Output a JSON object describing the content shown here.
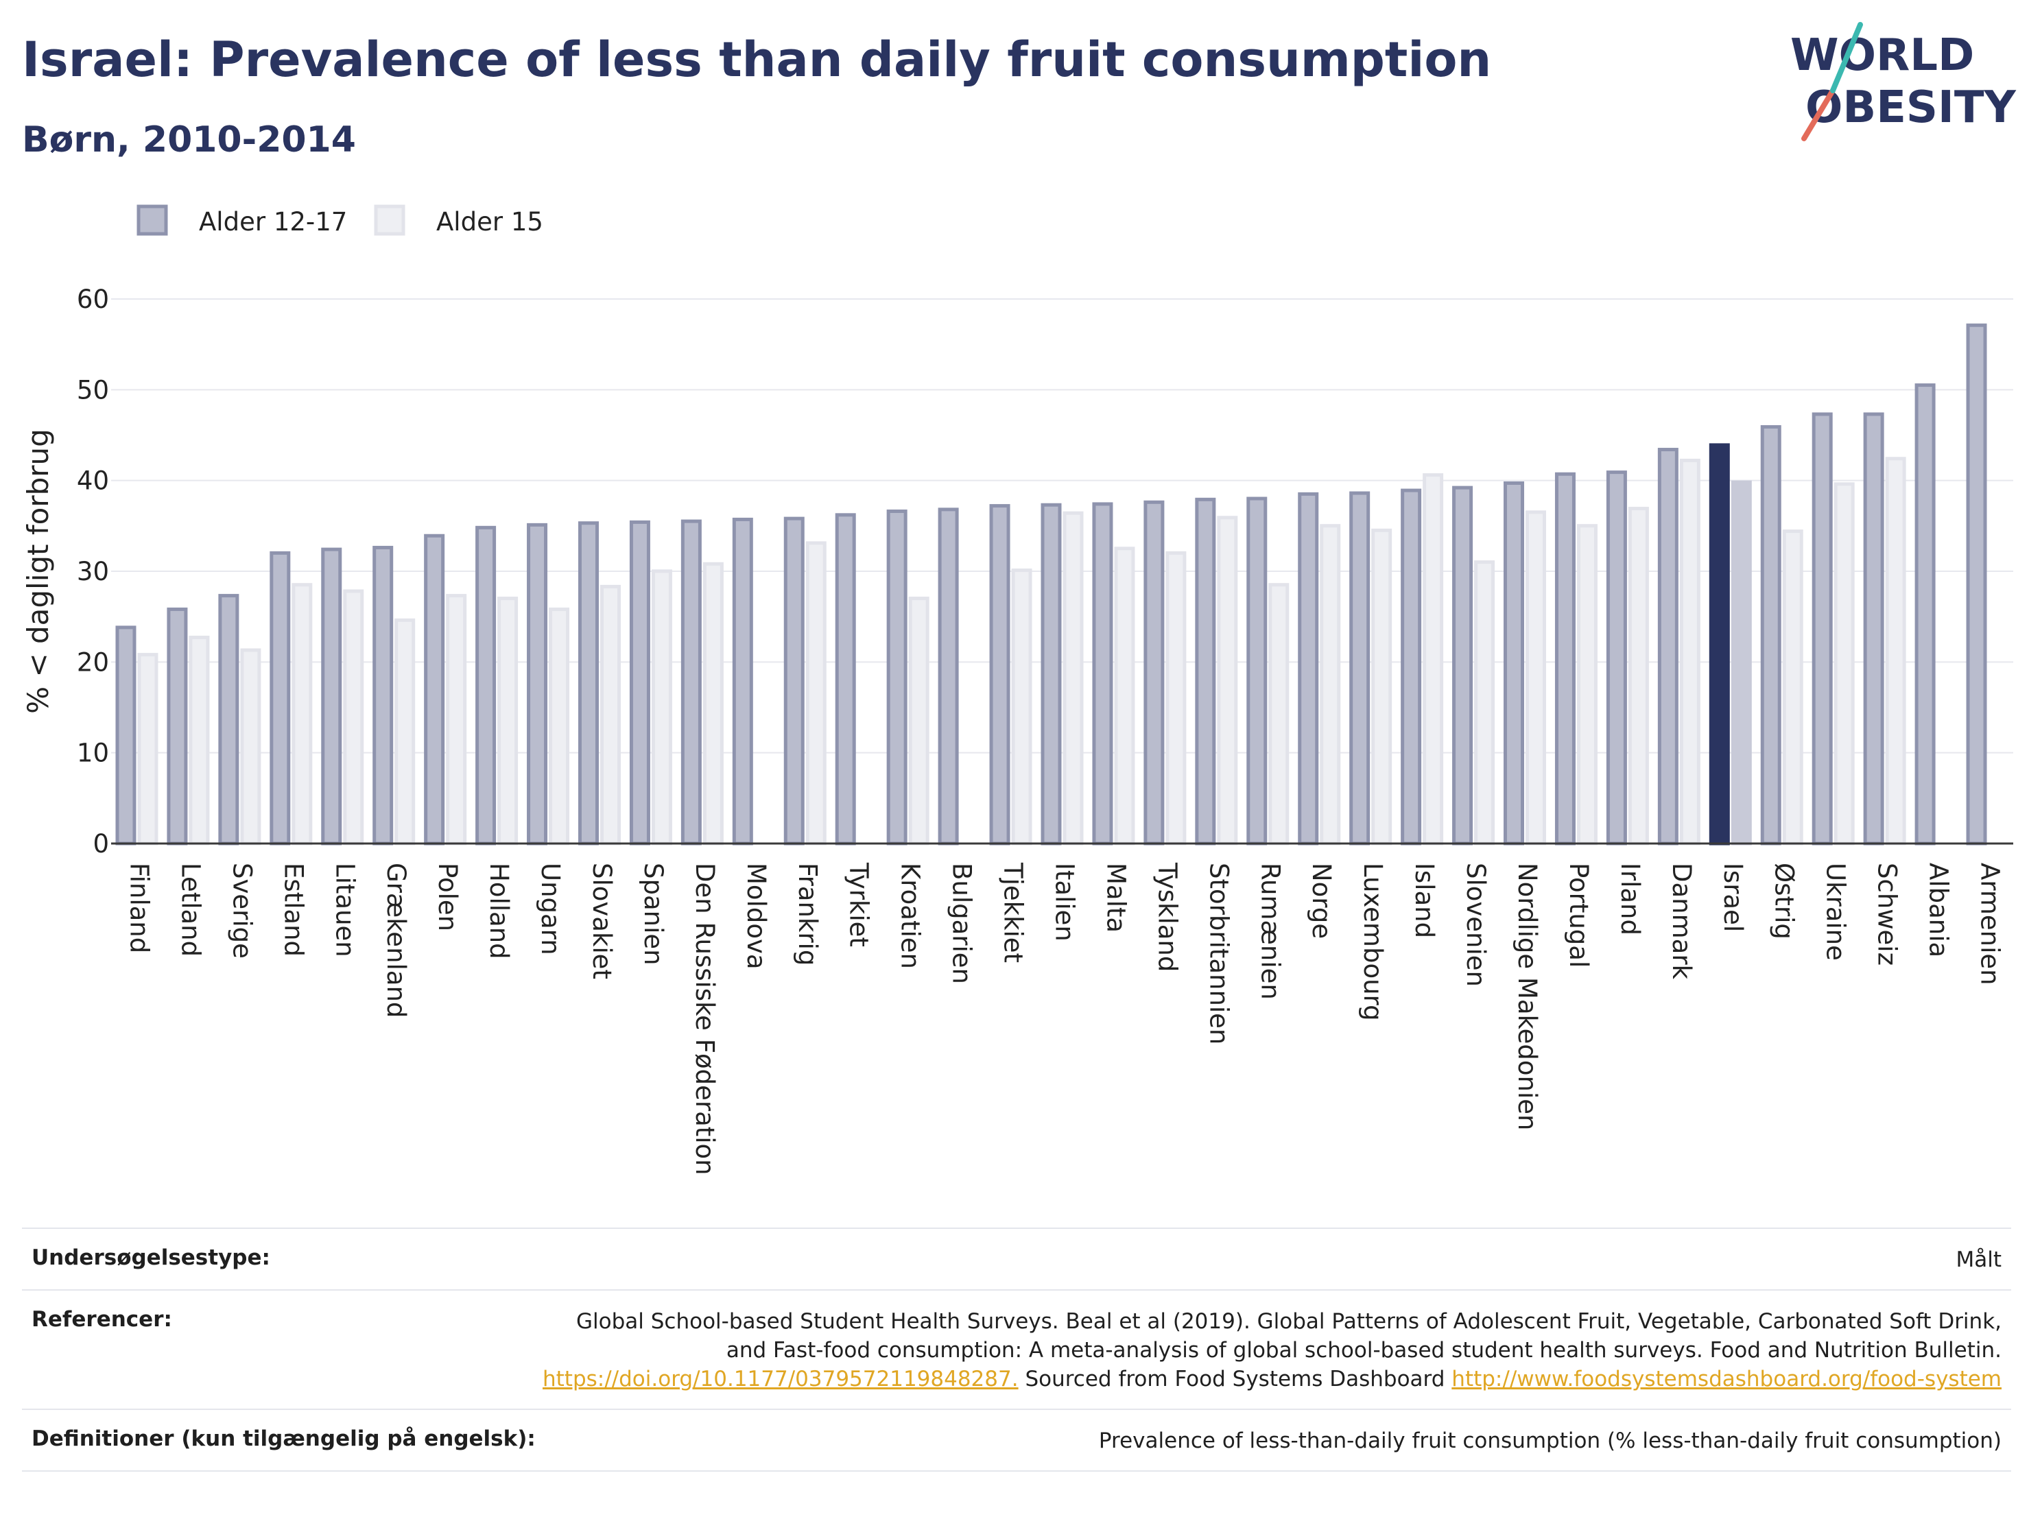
{
  "header": {
    "title": "Israel: Prevalence of less than daily fruit consumption",
    "subtitle": "Børn, 2010-2014"
  },
  "logo": {
    "line1": "WORLD",
    "line2": "OBESITY"
  },
  "colors": {
    "series1_fill": "#b9bccd",
    "series1_stroke": "#8e93ad",
    "series2_fill": "#eeeff3",
    "series2_stroke": "#e2e3ea",
    "highlight1": "#2a3460",
    "highlight2": "#c8cad8",
    "text": "#2a3460",
    "link": "#e0a623"
  },
  "chart_data": {
    "type": "bar",
    "title": "Israel: Prevalence of less than daily fruit consumption",
    "subtitle": "Børn, 2010-2014",
    "ylabel": "% < dagligt forbrug",
    "xlabel": "",
    "ylim": [
      0,
      60
    ],
    "yticks": [
      0,
      10,
      20,
      30,
      40,
      50,
      60
    ],
    "grid": true,
    "legend_position": "top-left",
    "highlight": "Israel",
    "categories": [
      "Finland",
      "Letland",
      "Sverige",
      "Estland",
      "Litauen",
      "Grækenland",
      "Polen",
      "Holland",
      "Ungarn",
      "Slovakiet",
      "Spanien",
      "Den Russiske Føderation",
      "Moldova",
      "Frankrig",
      "Tyrkiet",
      "Kroatien",
      "Bulgarien",
      "Tjekkiet",
      "Italien",
      "Malta",
      "Tyskland",
      "Storbritannien",
      "Rumænien",
      "Norge",
      "Luxembourg",
      "Island",
      "Slovenien",
      "Nordlige Makedonien",
      "Portugal",
      "Irland",
      "Danmark",
      "Israel",
      "Østrig",
      "Ukraine",
      "Schweiz",
      "Albania",
      "Armenien"
    ],
    "series": [
      {
        "name": "Alder 12-17",
        "values": [
          24.0,
          26.0,
          27.5,
          32.2,
          32.6,
          32.8,
          34.1,
          35.0,
          35.3,
          35.5,
          35.6,
          35.7,
          35.9,
          36.0,
          36.4,
          36.8,
          37.0,
          37.4,
          37.5,
          37.6,
          37.8,
          38.1,
          38.2,
          38.7,
          38.8,
          39.1,
          39.4,
          39.9,
          40.9,
          41.1,
          43.6,
          44.1,
          46.1,
          47.5,
          47.5,
          50.7,
          57.3
        ]
      },
      {
        "name": "Alder 15",
        "values": [
          21.0,
          22.9,
          21.5,
          28.7,
          28.0,
          24.8,
          27.5,
          27.2,
          26.0,
          28.5,
          30.2,
          31.0,
          null,
          33.3,
          null,
          27.2,
          null,
          30.3,
          36.6,
          32.7,
          32.2,
          36.1,
          28.7,
          35.2,
          34.7,
          40.8,
          31.2,
          36.7,
          35.2,
          37.1,
          42.4,
          40.0,
          34.6,
          39.8,
          42.6,
          null,
          null
        ]
      }
    ]
  },
  "meta": [
    {
      "label": "Undersøgelsestype:",
      "value": "Målt"
    },
    {
      "label": "Referencer:",
      "text": "Global School-based Student Health Surveys. Beal et al (2019). Global Patterns of Adolescent Fruit, Vegetable, Carbonated Soft Drink, and Fast-food consumption: A meta-analysis of global school-based student health surveys. Food and Nutrition Bulletin.",
      "link1": "https://doi.org/10.1177/0379572119848287.",
      "mid": "Sourced from Food Systems Dashboard",
      "link2": "http://www.foodsystemsdashboard.org/food-system"
    },
    {
      "label": "Definitioner (kun tilgængelig på engelsk):",
      "value": "Prevalence of less-than-daily fruit consumption (% less-than-daily fruit consumption)"
    }
  ]
}
